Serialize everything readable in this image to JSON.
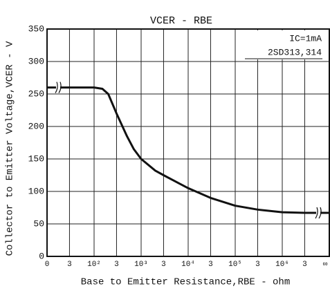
{
  "chart_data": {
    "type": "line",
    "title": "VCER - RBE",
    "annotations": [
      "IC=1mA",
      "2SD313,314"
    ],
    "x_label": "Base to Emitter Resistance,RBE - ohm",
    "y_label": "Collector to Emitter Voltage,VCER - V",
    "log_x": true,
    "grid": true,
    "xlim": [
      10,
      10000000
    ],
    "ylim": [
      0,
      350
    ],
    "xticks": [
      {
        "value": 10,
        "label": "0"
      },
      {
        "value": 30,
        "label": "3"
      },
      {
        "value": 100,
        "label": "10²"
      },
      {
        "value": 300,
        "label": "3"
      },
      {
        "value": 1000,
        "label": "10³"
      },
      {
        "value": 3000,
        "label": "3"
      },
      {
        "value": 10000,
        "label": "10⁴"
      },
      {
        "value": 30000,
        "label": "3"
      },
      {
        "value": 100000,
        "label": "10⁵"
      },
      {
        "value": 300000,
        "label": "3"
      },
      {
        "value": 1000000,
        "label": "10⁶"
      },
      {
        "value": 3000000,
        "label": "3"
      },
      {
        "value": 10000000,
        "label": "∞"
      }
    ],
    "yticks": [
      0,
      50,
      100,
      150,
      200,
      250,
      300,
      350
    ],
    "x": [
      10,
      100,
      150,
      200,
      300,
      500,
      700,
      1000,
      2000,
      3000,
      10000,
      30000,
      100000,
      300000,
      1000000,
      3000000,
      10000000
    ],
    "series": [
      {
        "color": "#111111",
        "values": [
          260,
          260,
          258,
          250,
          220,
          185,
          165,
          150,
          132,
          125,
          105,
          90,
          78,
          72,
          68,
          67,
          67
        ]
      }
    ]
  }
}
